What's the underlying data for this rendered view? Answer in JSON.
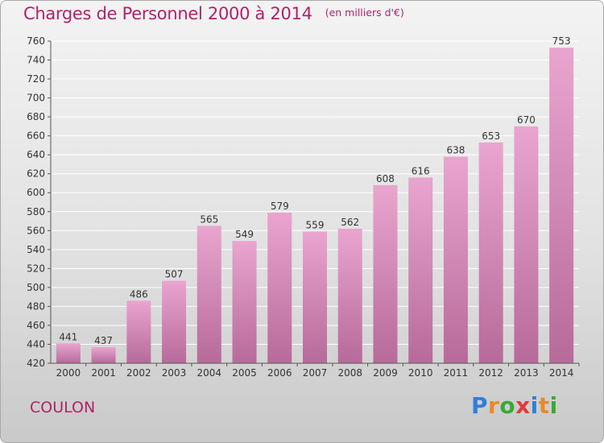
{
  "header": {
    "title": "Charges de Personnel 2000 à 2014",
    "subtitle": "(en milliers d'€)"
  },
  "footer": {
    "commune": "COULON",
    "brand_letters": [
      {
        "ch": "P",
        "color": "#2f7fd8"
      },
      {
        "ch": "r",
        "color": "#e8892a"
      },
      {
        "ch": "o",
        "color": "#3aa935"
      },
      {
        "ch": "x",
        "color": "#e23a3a"
      },
      {
        "ch": "i",
        "color": "#2f7fd8"
      },
      {
        "ch": "t",
        "color": "#e8892a"
      },
      {
        "ch": "i",
        "color": "#3aa935"
      }
    ]
  },
  "colors": {
    "title": "#b0226a",
    "bar_top": "#e9a5cf",
    "bar_bottom": "#b76a99",
    "axis": "#555555",
    "grid": "#ffffff"
  },
  "chart_data": {
    "type": "bar",
    "categories": [
      "2000",
      "2001",
      "2002",
      "2003",
      "2004",
      "2005",
      "2006",
      "2007",
      "2008",
      "2009",
      "2010",
      "2011",
      "2012",
      "2013",
      "2014"
    ],
    "values": [
      441,
      437,
      486,
      507,
      565,
      549,
      579,
      559,
      562,
      608,
      616,
      638,
      653,
      670,
      753
    ],
    "ylim": [
      420,
      760
    ],
    "yticks": [
      420,
      440,
      460,
      480,
      500,
      520,
      540,
      560,
      580,
      600,
      620,
      640,
      660,
      680,
      700,
      720,
      740,
      760
    ],
    "grid": "horizontal",
    "data_labels": true,
    "xlabel": "",
    "ylabel": ""
  }
}
